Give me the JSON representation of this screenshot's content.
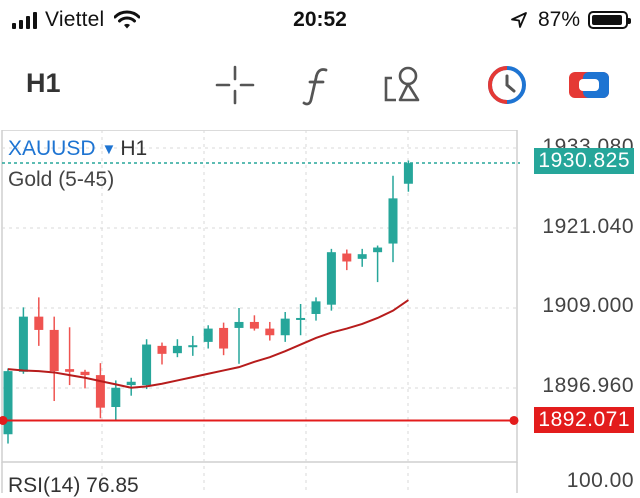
{
  "status_bar": {
    "carrier": "Viettel",
    "time": "20:52",
    "battery_percent": "87%"
  },
  "toolbar": {
    "timeframe": "H1",
    "icons": [
      "crosshair-icon",
      "function-icon",
      "drawing-tools-icon",
      "clock-history-icon",
      "toggle-panel-icon"
    ]
  },
  "chart": {
    "symbol": "XAUUSD",
    "symbol_dropdown": "▼",
    "timeframe": "H1",
    "indicator": "Gold (5-45)",
    "sub_indicator": "RSI(14) 76.85",
    "price_labels": [
      "1933.080",
      "1921.040",
      "1909.000",
      "1896.960",
      "100.00"
    ],
    "current_price": "1930.825",
    "horizontal_line_price": "1892.071",
    "colors": {
      "bull": "#26a69a",
      "bear": "#ef5350",
      "ma": "#b71c1c",
      "current_tag": "#26a69a",
      "line_tag": "#e31c1c",
      "symbol": "#1e74d2"
    }
  },
  "chart_data": {
    "type": "candlestick",
    "title": "XAUUSD H1",
    "ylim": [
      1888.0,
      1935.0
    ],
    "y_ticks": [
      1933.08,
      1921.04,
      1909.0,
      1896.96
    ],
    "candles": [
      {
        "o": 1890.0,
        "h": 1899.9,
        "l": 1888.6,
        "c": 1899.5
      },
      {
        "o": 1899.4,
        "h": 1909.1,
        "l": 1899.1,
        "c": 1907.7
      },
      {
        "o": 1907.7,
        "h": 1910.6,
        "l": 1903.3,
        "c": 1905.7
      },
      {
        "o": 1905.7,
        "h": 1907.7,
        "l": 1895.0,
        "c": 1899.5
      },
      {
        "o": 1899.8,
        "h": 1906.1,
        "l": 1897.4,
        "c": 1899.4
      },
      {
        "o": 1899.4,
        "h": 1899.7,
        "l": 1896.9,
        "c": 1898.9
      },
      {
        "o": 1898.9,
        "h": 1900.7,
        "l": 1892.4,
        "c": 1894.0
      },
      {
        "o": 1894.1,
        "h": 1898.1,
        "l": 1892.0,
        "c": 1897.0
      },
      {
        "o": 1897.4,
        "h": 1898.5,
        "l": 1895.8,
        "c": 1897.9
      },
      {
        "o": 1897.4,
        "h": 1904.3,
        "l": 1896.8,
        "c": 1903.5
      },
      {
        "o": 1903.3,
        "h": 1903.8,
        "l": 1900.5,
        "c": 1902.1
      },
      {
        "o": 1902.2,
        "h": 1904.3,
        "l": 1901.6,
        "c": 1903.3
      },
      {
        "o": 1903.3,
        "h": 1904.8,
        "l": 1901.8,
        "c": 1903.4
      },
      {
        "o": 1903.9,
        "h": 1906.4,
        "l": 1902.9,
        "c": 1905.9
      },
      {
        "o": 1906.0,
        "h": 1906.8,
        "l": 1901.9,
        "c": 1902.9
      },
      {
        "o": 1906.0,
        "h": 1909.0,
        "l": 1900.6,
        "c": 1906.9
      },
      {
        "o": 1906.9,
        "h": 1907.9,
        "l": 1905.6,
        "c": 1905.9
      },
      {
        "o": 1905.9,
        "h": 1906.9,
        "l": 1904.1,
        "c": 1904.9
      },
      {
        "o": 1904.9,
        "h": 1908.4,
        "l": 1903.9,
        "c": 1907.4
      },
      {
        "o": 1907.5,
        "h": 1909.6,
        "l": 1904.9,
        "c": 1907.5
      },
      {
        "o": 1908.1,
        "h": 1910.6,
        "l": 1907.1,
        "c": 1910.0
      },
      {
        "o": 1909.5,
        "h": 1917.9,
        "l": 1908.6,
        "c": 1917.4
      },
      {
        "o": 1917.2,
        "h": 1917.8,
        "l": 1914.7,
        "c": 1916.0
      },
      {
        "o": 1916.4,
        "h": 1917.9,
        "l": 1915.2,
        "c": 1917.1
      },
      {
        "o": 1917.4,
        "h": 1918.4,
        "l": 1912.9,
        "c": 1918.1
      },
      {
        "o": 1918.7,
        "h": 1928.9,
        "l": 1915.9,
        "c": 1925.5
      },
      {
        "o": 1927.7,
        "h": 1931.2,
        "l": 1926.5,
        "c": 1930.8
      }
    ],
    "ma_line": [
      1899.8,
      1899.6,
      1899.5,
      1899.3,
      1898.9,
      1898.5,
      1898.0,
      1897.5,
      1897.0,
      1897.2,
      1897.6,
      1898.1,
      1898.6,
      1899.1,
      1899.6,
      1900.1,
      1900.9,
      1901.6,
      1902.5,
      1903.5,
      1904.5,
      1905.3,
      1905.9,
      1906.6,
      1907.5,
      1908.6,
      1910.2
    ],
    "horizontal_line": 1892.071,
    "current_price": 1930.825
  }
}
